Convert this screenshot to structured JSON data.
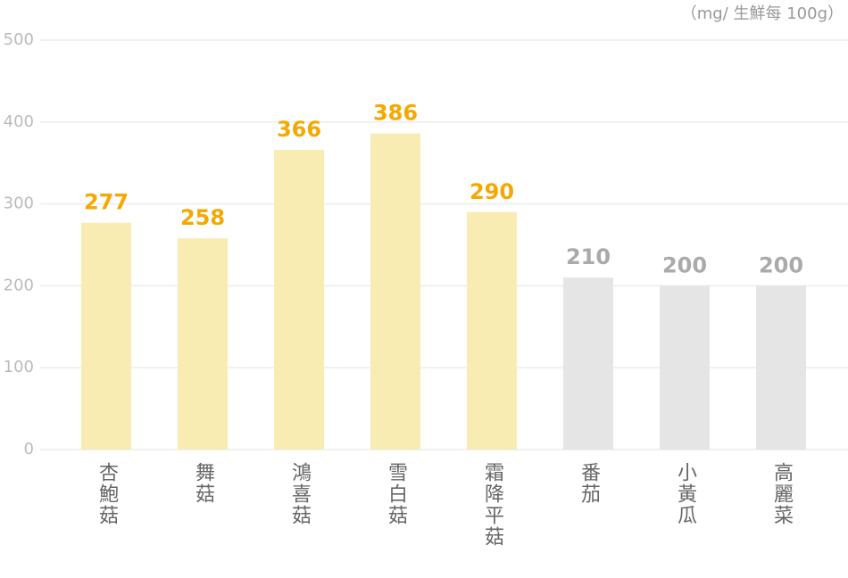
{
  "chart_data": {
    "type": "bar",
    "annotation": "（mg/ 生鮮每 100g）",
    "categories": [
      "杏鮑菇",
      "舞菇",
      "鴻喜菇",
      "雪白菇",
      "霜降平菇",
      "番茄",
      "小黃瓜",
      "高麗菜"
    ],
    "values": [
      277,
      258,
      366,
      386,
      290,
      210,
      200,
      200
    ],
    "colors": [
      "#f9ecb3",
      "#f9ecb3",
      "#f9ecb3",
      "#f9ecb3",
      "#f9ecb3",
      "#e5e5e5",
      "#e5e5e5",
      "#e5e5e5"
    ],
    "label_colors": [
      "#f5a800",
      "#f5a800",
      "#f5a800",
      "#f5a800",
      "#f5a800",
      "#aaaaaa",
      "#aaaaaa",
      "#aaaaaa"
    ],
    "ylim": [
      0,
      500
    ],
    "yticks": [
      0,
      100,
      200,
      300,
      400,
      500
    ],
    "grid": true
  }
}
